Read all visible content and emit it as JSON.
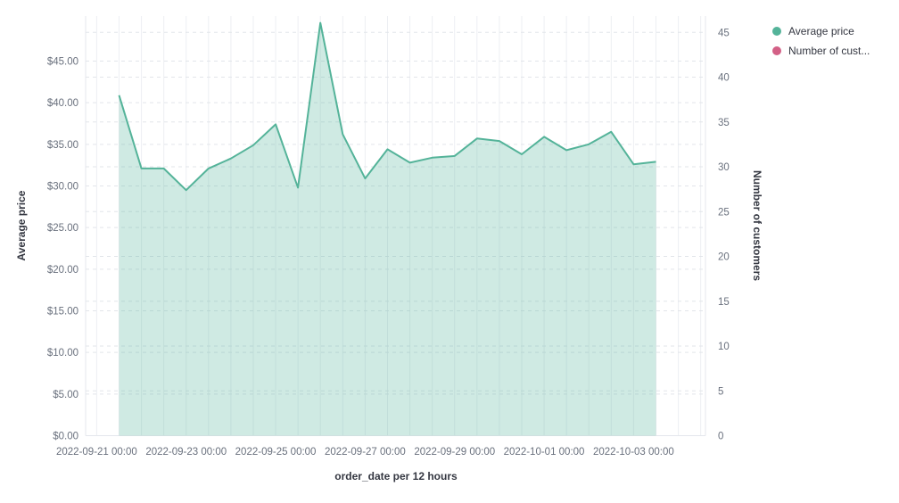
{
  "chart_data": {
    "type": "area",
    "title": "",
    "xlabel": "order_date per 12 hours",
    "ylabel_left": "Average price",
    "ylabel_right": "Number of customers",
    "grid": true,
    "legend_position": "top-right",
    "x": [
      "2022-09-21 12:00",
      "2022-09-22 00:00",
      "2022-09-22 12:00",
      "2022-09-23 00:00",
      "2022-09-23 12:00",
      "2022-09-24 00:00",
      "2022-09-24 12:00",
      "2022-09-25 00:00",
      "2022-09-25 12:00",
      "2022-09-26 00:00",
      "2022-09-26 12:00",
      "2022-09-27 00:00",
      "2022-09-27 12:00",
      "2022-09-28 00:00",
      "2022-09-28 12:00",
      "2022-09-29 00:00",
      "2022-09-29 12:00",
      "2022-09-30 00:00",
      "2022-09-30 12:00",
      "2022-10-01 00:00",
      "2022-10-01 12:00",
      "2022-10-02 00:00",
      "2022-10-02 12:00",
      "2022-10-03 00:00",
      "2022-10-03 12:00"
    ],
    "series": [
      {
        "name": "Average price",
        "axis": "left",
        "color": "#54B399",
        "fill_opacity": 0.28,
        "values": [
          40.9,
          32.1,
          32.1,
          29.5,
          32.1,
          33.3,
          34.9,
          37.4,
          29.8,
          49.6,
          36.2,
          30.9,
          34.4,
          32.8,
          33.4,
          33.6,
          35.7,
          35.4,
          33.8,
          35.9,
          34.3,
          35.0,
          36.5,
          32.6,
          32.9
        ]
      },
      {
        "name": "Number of customers",
        "axis": "right",
        "color": "#D36086",
        "values": []
      }
    ],
    "y_left_axis": {
      "range": [
        0,
        50.4
      ],
      "tick_values": [
        0,
        5,
        10,
        15,
        20,
        25,
        30,
        35,
        40,
        45
      ],
      "tick_labels": [
        "$0.00",
        "$5.00",
        "$10.00",
        "$15.00",
        "$20.00",
        "$25.00",
        "$30.00",
        "$35.00",
        "$40.00",
        "$45.00"
      ]
    },
    "y_right_axis": {
      "range": [
        0,
        46.8
      ],
      "tick_values": [
        0,
        5,
        10,
        15,
        20,
        25,
        30,
        35,
        40,
        45
      ],
      "tick_labels": [
        "0",
        "5",
        "10",
        "15",
        "20",
        "25",
        "30",
        "35",
        "40",
        "45"
      ]
    },
    "x_axis": {
      "tick_labels": [
        "2022-09-21 00:00",
        "2022-09-23 00:00",
        "2022-09-25 00:00",
        "2022-09-27 00:00",
        "2022-09-29 00:00",
        "2022-10-01 00:00",
        "2022-10-03 00:00"
      ]
    }
  },
  "legend": {
    "items": [
      {
        "label": "Average price",
        "color": "#54B399"
      },
      {
        "label": "Number of cust...",
        "color": "#D36086"
      }
    ]
  }
}
